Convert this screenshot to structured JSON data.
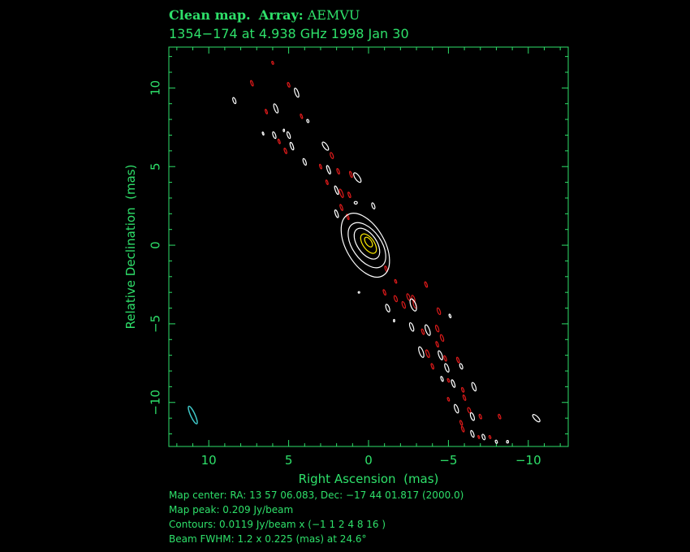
{
  "header": {
    "title_prefix": "Clean map.",
    "array_label": "Array:",
    "array_value": "AEMVU",
    "subtitle": "1354−174 at 4.938 GHz 1998 Jan 30"
  },
  "footer": {
    "map_center": "Map center:  RA: 13 57 06.083,  Dec: −17 44 01.817 (2000.0)",
    "map_peak": "Map peak: 0.209 Jy/beam",
    "contours": "Contours: 0.0119 Jy/beam x (−1 1 2 4 8 16 )",
    "beam": "Beam FWHM: 1.2 x 0.225 (mas) at 24.6°"
  },
  "colors": {
    "axis": "#2ee06a",
    "positive_contour": "#ffffff",
    "negative_contour": "#dd1a1a",
    "peak_contour": "#ffee00",
    "beam": "#3fc7c7"
  },
  "chart_data": {
    "type": "contour",
    "xlabel": "Right Ascension  (mas)",
    "ylabel": "Relative Declination  (mas)",
    "xlim": [
      12.5,
      -12.5
    ],
    "ylim": [
      -12.8,
      12.6
    ],
    "x_ticks": [
      10,
      5,
      0,
      -5,
      -10
    ],
    "y_ticks": [
      10,
      5,
      0,
      -5,
      -10
    ],
    "x_tick_labels": [
      "10",
      "5",
      "0",
      "−5",
      "−10"
    ],
    "y_tick_labels": [
      "10",
      "5",
      "0",
      "−5",
      "−10"
    ],
    "contour_levels_jy_per_beam": [
      -0.0119,
      0.0119,
      0.0238,
      0.0476,
      0.0952,
      0.1904
    ],
    "peak_jy_per_beam": 0.209,
    "beam": {
      "x": 11.0,
      "y": -10.8,
      "major_mas": 1.2,
      "minor_mas": 0.225,
      "pa_deg": 24.6
    },
    "core_contours": [
      {
        "x": 0.2,
        "y": 0.0,
        "rx": 1.2,
        "ry": 2.2,
        "rot": -30,
        "color": "white"
      },
      {
        "x": 0.1,
        "y": 0.0,
        "rx": 0.9,
        "ry": 1.6,
        "rot": -35,
        "color": "white"
      },
      {
        "x": 0.1,
        "y": 0.1,
        "rx": 0.6,
        "ry": 1.1,
        "rot": -35,
        "color": "white"
      },
      {
        "x": 0.0,
        "y": 0.1,
        "rx": 0.35,
        "ry": 0.7,
        "rot": -35,
        "color": "yellow"
      },
      {
        "x": 0.0,
        "y": 0.2,
        "rx": 0.18,
        "ry": 0.35,
        "rot": -35,
        "color": "yellow"
      }
    ],
    "components": [
      {
        "x": 8.4,
        "y": 9.2,
        "rx": 0.08,
        "ry": 0.2,
        "rot": -20,
        "color": "white"
      },
      {
        "x": 7.3,
        "y": 10.3,
        "rx": 0.06,
        "ry": 0.18,
        "rot": -20,
        "color": "red"
      },
      {
        "x": 6.0,
        "y": 11.6,
        "rx": 0.05,
        "ry": 0.1,
        "rot": -20,
        "color": "red"
      },
      {
        "x": 5.0,
        "y": 10.2,
        "rx": 0.06,
        "ry": 0.15,
        "rot": -20,
        "color": "red"
      },
      {
        "x": 4.5,
        "y": 9.7,
        "rx": 0.1,
        "ry": 0.3,
        "rot": -20,
        "color": "white"
      },
      {
        "x": 5.8,
        "y": 8.7,
        "rx": 0.1,
        "ry": 0.3,
        "rot": -20,
        "color": "white"
      },
      {
        "x": 6.4,
        "y": 8.5,
        "rx": 0.05,
        "ry": 0.15,
        "rot": -20,
        "color": "red"
      },
      {
        "x": 4.2,
        "y": 8.2,
        "rx": 0.05,
        "ry": 0.15,
        "rot": -20,
        "color": "red"
      },
      {
        "x": 3.8,
        "y": 7.9,
        "rx": 0.06,
        "ry": 0.1,
        "rot": -20,
        "color": "white"
      },
      {
        "x": 6.6,
        "y": 7.1,
        "rx": 0.04,
        "ry": 0.1,
        "rot": -20,
        "color": "white"
      },
      {
        "x": 5.9,
        "y": 7.0,
        "rx": 0.08,
        "ry": 0.22,
        "rot": -20,
        "color": "white"
      },
      {
        "x": 5.0,
        "y": 7.0,
        "rx": 0.08,
        "ry": 0.22,
        "rot": -20,
        "color": "white"
      },
      {
        "x": 5.3,
        "y": 7.3,
        "rx": 0.04,
        "ry": 0.08,
        "rot": 0,
        "color": "white"
      },
      {
        "x": 5.6,
        "y": 6.6,
        "rx": 0.05,
        "ry": 0.15,
        "rot": -20,
        "color": "red"
      },
      {
        "x": 4.8,
        "y": 6.3,
        "rx": 0.08,
        "ry": 0.25,
        "rot": -20,
        "color": "white"
      },
      {
        "x": 5.2,
        "y": 6.0,
        "rx": 0.06,
        "ry": 0.18,
        "rot": -20,
        "color": "red"
      },
      {
        "x": 2.7,
        "y": 6.3,
        "rx": 0.12,
        "ry": 0.3,
        "rot": -35,
        "color": "white"
      },
      {
        "x": 2.3,
        "y": 5.7,
        "rx": 0.08,
        "ry": 0.2,
        "rot": -20,
        "color": "red"
      },
      {
        "x": 4.0,
        "y": 5.3,
        "rx": 0.08,
        "ry": 0.22,
        "rot": -20,
        "color": "white"
      },
      {
        "x": 3.0,
        "y": 5.0,
        "rx": 0.05,
        "ry": 0.15,
        "rot": -20,
        "color": "red"
      },
      {
        "x": 2.5,
        "y": 4.8,
        "rx": 0.08,
        "ry": 0.28,
        "rot": -20,
        "color": "white"
      },
      {
        "x": 1.9,
        "y": 4.7,
        "rx": 0.06,
        "ry": 0.18,
        "rot": -20,
        "color": "red"
      },
      {
        "x": 1.1,
        "y": 4.5,
        "rx": 0.06,
        "ry": 0.2,
        "rot": -20,
        "color": "red"
      },
      {
        "x": 0.7,
        "y": 4.3,
        "rx": 0.14,
        "ry": 0.35,
        "rot": -35,
        "color": "white"
      },
      {
        "x": 2.6,
        "y": 4.0,
        "rx": 0.05,
        "ry": 0.15,
        "rot": -20,
        "color": "red"
      },
      {
        "x": 2.0,
        "y": 3.5,
        "rx": 0.08,
        "ry": 0.28,
        "rot": -20,
        "color": "white"
      },
      {
        "x": 1.7,
        "y": 3.3,
        "rx": 0.08,
        "ry": 0.28,
        "rot": -20,
        "color": "red"
      },
      {
        "x": 1.2,
        "y": 3.2,
        "rx": 0.06,
        "ry": 0.18,
        "rot": -20,
        "color": "red"
      },
      {
        "x": 1.7,
        "y": 2.4,
        "rx": 0.06,
        "ry": 0.2,
        "rot": -20,
        "color": "red"
      },
      {
        "x": 2.0,
        "y": 2.0,
        "rx": 0.08,
        "ry": 0.25,
        "rot": -20,
        "color": "white"
      },
      {
        "x": 0.8,
        "y": 2.7,
        "rx": 0.1,
        "ry": 0.08,
        "rot": 0,
        "color": "white"
      },
      {
        "x": -0.3,
        "y": 2.5,
        "rx": 0.08,
        "ry": 0.2,
        "rot": -20,
        "color": "white"
      },
      {
        "x": 1.3,
        "y": 1.8,
        "rx": 0.05,
        "ry": 0.18,
        "rot": -20,
        "color": "red"
      },
      {
        "x": -1.1,
        "y": -1.5,
        "rx": 0.06,
        "ry": 0.18,
        "rot": -20,
        "color": "red"
      },
      {
        "x": -1.7,
        "y": -2.3,
        "rx": 0.05,
        "ry": 0.12,
        "rot": -20,
        "color": "red"
      },
      {
        "x": -3.6,
        "y": -2.5,
        "rx": 0.06,
        "ry": 0.18,
        "rot": -20,
        "color": "red"
      },
      {
        "x": 0.6,
        "y": -3.0,
        "rx": 0.05,
        "ry": 0.05,
        "rot": 0,
        "color": "white"
      },
      {
        "x": -1.0,
        "y": -3.0,
        "rx": 0.06,
        "ry": 0.18,
        "rot": -20,
        "color": "red"
      },
      {
        "x": -1.7,
        "y": -3.4,
        "rx": 0.08,
        "ry": 0.2,
        "rot": -20,
        "color": "red"
      },
      {
        "x": -2.5,
        "y": -3.3,
        "rx": 0.08,
        "ry": 0.22,
        "rot": -20,
        "color": "red"
      },
      {
        "x": -2.2,
        "y": -3.8,
        "rx": 0.08,
        "ry": 0.22,
        "rot": -20,
        "color": "red"
      },
      {
        "x": -2.9,
        "y": -3.8,
        "rx": 0.08,
        "ry": 0.22,
        "rot": -20,
        "color": "red"
      },
      {
        "x": -2.8,
        "y": -3.4,
        "rx": 0.08,
        "ry": 0.22,
        "rot": -20,
        "color": "red"
      },
      {
        "x": -2.8,
        "y": -3.8,
        "rx": 0.16,
        "ry": 0.4,
        "rot": -20,
        "color": "white"
      },
      {
        "x": -1.2,
        "y": -4.0,
        "rx": 0.1,
        "ry": 0.25,
        "rot": -20,
        "color": "white"
      },
      {
        "x": -4.4,
        "y": -4.2,
        "rx": 0.08,
        "ry": 0.22,
        "rot": -20,
        "color": "red"
      },
      {
        "x": -5.1,
        "y": -4.5,
        "rx": 0.05,
        "ry": 0.12,
        "rot": -20,
        "color": "white"
      },
      {
        "x": -1.6,
        "y": -4.8,
        "rx": 0.04,
        "ry": 0.08,
        "rot": 0,
        "color": "white"
      },
      {
        "x": -2.7,
        "y": -5.2,
        "rx": 0.1,
        "ry": 0.28,
        "rot": -20,
        "color": "white"
      },
      {
        "x": -3.7,
        "y": -5.4,
        "rx": 0.12,
        "ry": 0.35,
        "rot": -20,
        "color": "white"
      },
      {
        "x": -4.3,
        "y": -5.3,
        "rx": 0.08,
        "ry": 0.22,
        "rot": -20,
        "color": "red"
      },
      {
        "x": -3.4,
        "y": -5.5,
        "rx": 0.06,
        "ry": 0.18,
        "rot": -20,
        "color": "red"
      },
      {
        "x": -4.6,
        "y": -5.9,
        "rx": 0.08,
        "ry": 0.22,
        "rot": -20,
        "color": "red"
      },
      {
        "x": -4.3,
        "y": -6.3,
        "rx": 0.06,
        "ry": 0.18,
        "rot": -20,
        "color": "red"
      },
      {
        "x": -3.3,
        "y": -6.8,
        "rx": 0.12,
        "ry": 0.35,
        "rot": -20,
        "color": "white"
      },
      {
        "x": -3.7,
        "y": -6.9,
        "rx": 0.08,
        "ry": 0.25,
        "rot": -20,
        "color": "red"
      },
      {
        "x": -4.5,
        "y": -7.0,
        "rx": 0.1,
        "ry": 0.3,
        "rot": -20,
        "color": "white"
      },
      {
        "x": -4.8,
        "y": -7.2,
        "rx": 0.06,
        "ry": 0.18,
        "rot": -20,
        "color": "red"
      },
      {
        "x": -5.6,
        "y": -7.3,
        "rx": 0.06,
        "ry": 0.18,
        "rot": -20,
        "color": "red"
      },
      {
        "x": -4.0,
        "y": -7.7,
        "rx": 0.06,
        "ry": 0.18,
        "rot": -20,
        "color": "red"
      },
      {
        "x": -4.9,
        "y": -7.8,
        "rx": 0.1,
        "ry": 0.28,
        "rot": -20,
        "color": "white"
      },
      {
        "x": -5.8,
        "y": -7.7,
        "rx": 0.08,
        "ry": 0.18,
        "rot": -20,
        "color": "white"
      },
      {
        "x": -4.6,
        "y": -8.5,
        "rx": 0.06,
        "ry": 0.16,
        "rot": -20,
        "color": "white"
      },
      {
        "x": -5.3,
        "y": -8.8,
        "rx": 0.08,
        "ry": 0.25,
        "rot": -20,
        "color": "white"
      },
      {
        "x": -5.0,
        "y": -8.6,
        "rx": 0.05,
        "ry": 0.12,
        "rot": -20,
        "color": "red"
      },
      {
        "x": -6.6,
        "y": -9.0,
        "rx": 0.1,
        "ry": 0.28,
        "rot": -20,
        "color": "white"
      },
      {
        "x": -5.9,
        "y": -9.2,
        "rx": 0.06,
        "ry": 0.15,
        "rot": -20,
        "color": "red"
      },
      {
        "x": -6.0,
        "y": -9.7,
        "rx": 0.06,
        "ry": 0.18,
        "rot": -20,
        "color": "red"
      },
      {
        "x": -5.0,
        "y": -9.8,
        "rx": 0.05,
        "ry": 0.12,
        "rot": -20,
        "color": "red"
      },
      {
        "x": -5.5,
        "y": -10.4,
        "rx": 0.1,
        "ry": 0.28,
        "rot": -20,
        "color": "white"
      },
      {
        "x": -6.3,
        "y": -10.5,
        "rx": 0.08,
        "ry": 0.18,
        "rot": -20,
        "color": "red"
      },
      {
        "x": -6.5,
        "y": -10.9,
        "rx": 0.1,
        "ry": 0.25,
        "rot": -20,
        "color": "white"
      },
      {
        "x": -7.0,
        "y": -10.9,
        "rx": 0.06,
        "ry": 0.15,
        "rot": -20,
        "color": "red"
      },
      {
        "x": -8.2,
        "y": -10.9,
        "rx": 0.06,
        "ry": 0.15,
        "rot": -20,
        "color": "red"
      },
      {
        "x": -10.5,
        "y": -11.0,
        "rx": 0.12,
        "ry": 0.3,
        "rot": -45,
        "color": "white"
      },
      {
        "x": -5.8,
        "y": -11.3,
        "rx": 0.06,
        "ry": 0.16,
        "rot": -20,
        "color": "red"
      },
      {
        "x": -5.9,
        "y": -11.7,
        "rx": 0.06,
        "ry": 0.18,
        "rot": -20,
        "color": "red"
      },
      {
        "x": -6.5,
        "y": -12.0,
        "rx": 0.08,
        "ry": 0.22,
        "rot": -20,
        "color": "white"
      },
      {
        "x": -6.9,
        "y": -12.2,
        "rx": 0.04,
        "ry": 0.1,
        "rot": -20,
        "color": "red"
      },
      {
        "x": -7.2,
        "y": -12.2,
        "rx": 0.08,
        "ry": 0.18,
        "rot": -20,
        "color": "white"
      },
      {
        "x": -7.6,
        "y": -12.2,
        "rx": 0.05,
        "ry": 0.1,
        "rot": -20,
        "color": "red"
      },
      {
        "x": -8.0,
        "y": -12.5,
        "rx": 0.06,
        "ry": 0.1,
        "rot": -20,
        "color": "white"
      },
      {
        "x": -8.7,
        "y": -12.5,
        "rx": 0.06,
        "ry": 0.08,
        "rot": 0,
        "color": "white"
      }
    ]
  }
}
